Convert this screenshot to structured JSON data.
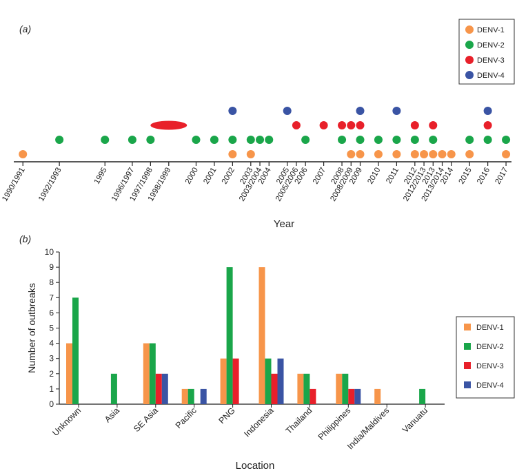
{
  "colors": {
    "DENV-1": "#f7954a",
    "DENV-2": "#1aa64a",
    "DENV-3": "#e8202a",
    "DENV-4": "#3a54a4"
  },
  "chart_data": [
    {
      "type": "scatter",
      "panel_label": "(a)",
      "xlabel": "Year",
      "legend_position": "top-right",
      "legend": [
        "DENV-1",
        "DENV-2",
        "DENV-3",
        "DENV-4"
      ],
      "x_ticks": [
        {
          "label": "1990/1991",
          "x": 1990.5
        },
        {
          "label": "1992/1993",
          "x": 1992.5
        },
        {
          "label": "1995",
          "x": 1995
        },
        {
          "label": "1996/1997",
          "x": 1996.5
        },
        {
          "label": "1997/1998",
          "x": 1997.5
        },
        {
          "label": "1998/1999",
          "x": 1998.5
        },
        {
          "label": "2000",
          "x": 2000
        },
        {
          "label": "2001",
          "x": 2001
        },
        {
          "label": "2002",
          "x": 2002
        },
        {
          "label": "2003",
          "x": 2003
        },
        {
          "label": "2003/2004",
          "x": 2003.5
        },
        {
          "label": "2004",
          "x": 2004
        },
        {
          "label": "2005",
          "x": 2005
        },
        {
          "label": "2005/2006",
          "x": 2005.5
        },
        {
          "label": "2006",
          "x": 2006
        },
        {
          "label": "2007",
          "x": 2007
        },
        {
          "label": "2008",
          "x": 2008
        },
        {
          "label": "2008/2009",
          "x": 2008.5
        },
        {
          "label": "2009",
          "x": 2009
        },
        {
          "label": "2010",
          "x": 2010
        },
        {
          "label": "2011",
          "x": 2011
        },
        {
          "label": "2012",
          "x": 2012
        },
        {
          "label": "2012/2013",
          "x": 2012.5
        },
        {
          "label": "2013",
          "x": 2013
        },
        {
          "label": "2013/2014",
          "x": 2013.5
        },
        {
          "label": "2014",
          "x": 2014
        },
        {
          "label": "2015",
          "x": 2015
        },
        {
          "label": "2016",
          "x": 2016
        },
        {
          "label": "2017",
          "x": 2017
        }
      ],
      "series": [
        {
          "name": "DENV-1",
          "x": [
            1990.5,
            2002,
            2003,
            2008.5,
            2009,
            2010,
            2011,
            2012,
            2012.5,
            2013,
            2013.5,
            2014,
            2015,
            2017
          ]
        },
        {
          "name": "DENV-2",
          "x": [
            1992.5,
            1995,
            1996.5,
            1997.5,
            2000,
            2001,
            2002,
            2003,
            2003.5,
            2004,
            2006,
            2008,
            2009,
            2010,
            2011,
            2012,
            2013,
            2015,
            2016,
            2017
          ]
        },
        {
          "name": "DENV-3",
          "x": [
            2005.5,
            2007,
            2008,
            2008.5,
            2009,
            2012,
            2013,
            2016
          ],
          "span": [
            1997.5,
            1999.5
          ]
        },
        {
          "name": "DENV-4",
          "x": [
            2002,
            2005,
            2009,
            2011,
            2016
          ]
        }
      ]
    },
    {
      "type": "bar",
      "panel_label": "(b)",
      "xlabel": "Location",
      "ylabel": "Number of outbreaks",
      "ylim": [
        0,
        10
      ],
      "y_ticks": [
        0,
        1,
        2,
        3,
        4,
        5,
        6,
        7,
        8,
        9,
        10
      ],
      "legend_position": "right",
      "categories": [
        "Unknown",
        "Asia",
        "SE Asia",
        "Pacific",
        "PNG",
        "Indonesia",
        "Thailand",
        "Philippines",
        "India/Maldives",
        "Vanuatu"
      ],
      "series": [
        {
          "name": "DENV-1",
          "values": [
            4,
            0,
            4,
            1,
            3,
            9,
            2,
            2,
            1,
            0
          ]
        },
        {
          "name": "DENV-2",
          "values": [
            7,
            2,
            4,
            1,
            9,
            3,
            2,
            2,
            0,
            1
          ]
        },
        {
          "name": "DENV-3",
          "values": [
            0,
            0,
            2,
            0,
            3,
            2,
            1,
            1,
            0,
            0
          ]
        },
        {
          "name": "DENV-4",
          "values": [
            0,
            0,
            2,
            1,
            0,
            3,
            0,
            1,
            0,
            0
          ]
        }
      ]
    }
  ]
}
